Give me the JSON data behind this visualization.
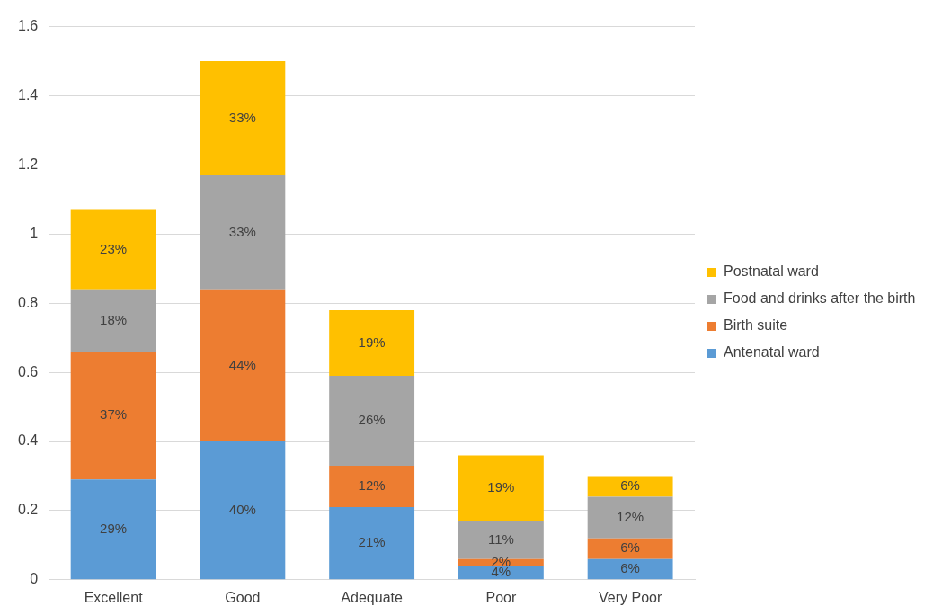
{
  "chart_data": {
    "type": "bar",
    "stacked": true,
    "categories": [
      "Excellent",
      "Good",
      "Adequate",
      "Poor",
      "Very Poor"
    ],
    "series": [
      {
        "name": "Antenatal ward",
        "color": "#5b9bd5",
        "values": [
          0.29,
          0.4,
          0.21,
          0.04,
          0.06
        ],
        "value_labels": [
          "29%",
          "40%",
          "21%",
          "4%",
          "6%"
        ]
      },
      {
        "name": "Birth suite",
        "color": "#ed7d31",
        "values": [
          0.37,
          0.44,
          0.12,
          0.02,
          0.06
        ],
        "value_labels": [
          "37%",
          "44%",
          "12%",
          "2%",
          "6%"
        ]
      },
      {
        "name": "Food and drinks after the birth",
        "color": "#a5a5a5",
        "values": [
          0.18,
          0.33,
          0.26,
          0.11,
          0.12
        ],
        "value_labels": [
          "18%",
          "33%",
          "26%",
          "11%",
          "12%"
        ]
      },
      {
        "name": "Postnatal ward",
        "color": "#ffc000",
        "values": [
          0.23,
          0.33,
          0.19,
          0.19,
          0.06
        ],
        "value_labels": [
          "23%",
          "33%",
          "19%",
          "19%",
          "6%"
        ]
      }
    ],
    "ylim": [
      0,
      1.6
    ],
    "yticks": [
      0,
      0.2,
      0.4,
      0.6,
      0.8,
      1,
      1.2,
      1.4,
      1.6
    ],
    "grid": "y",
    "legend": "right"
  }
}
